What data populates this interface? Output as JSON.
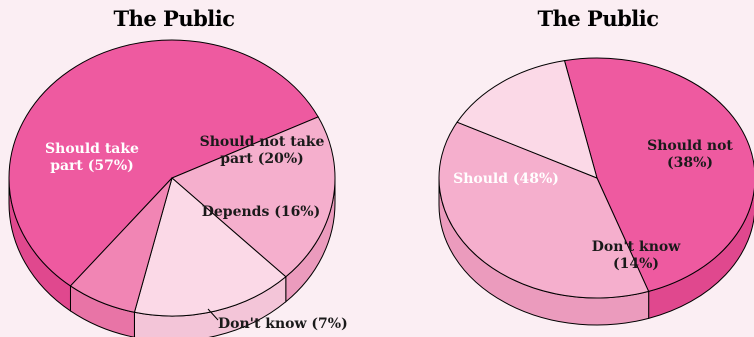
{
  "chart_data": [
    {
      "type": "pie",
      "title": "The Public",
      "slices": [
        {
          "label": "Should take part",
          "value": 57,
          "color": "#ee5aa0",
          "side": "#e0488e",
          "text": [
            "Should take",
            "part (57%)"
          ],
          "text_color": "#ffffff"
        },
        {
          "label": "Should not take part",
          "value": 20,
          "color": "#f5afcd",
          "side": "#eb9bbd",
          "text": [
            "Should not take",
            "part (20%)"
          ],
          "text_color": "#1a1a1a"
        },
        {
          "label": "Depends",
          "value": 16,
          "color": "#fbd9e7",
          "side": "#f3c5d8",
          "text": [
            "Depends (16%)"
          ],
          "text_color": "#1a1a1a"
        },
        {
          "label": "Don't know",
          "value": 7,
          "color": "#f185b4",
          "side": "#e874a6",
          "text": [
            "Don't know (7%)"
          ],
          "text_color": "#1a1a1a",
          "callout": true
        }
      ]
    },
    {
      "type": "pie",
      "title": "The Public",
      "slices": [
        {
          "label": "Should",
          "value": 48,
          "color": "#ee5aa0",
          "side": "#e0488e",
          "text": [
            "Should (48%)"
          ],
          "text_color": "#ffffff"
        },
        {
          "label": "Should not",
          "value": 38,
          "color": "#f5afcd",
          "side": "#eb9bbd",
          "text": [
            "Should not",
            "(38%)"
          ],
          "text_color": "#1a1a1a"
        },
        {
          "label": "Don't know",
          "value": 14,
          "color": "#fbd9e7",
          "side": "#f3c5d8",
          "text": [
            "Don't know",
            "(14%)"
          ],
          "text_color": "#1a1a1a"
        }
      ]
    }
  ]
}
